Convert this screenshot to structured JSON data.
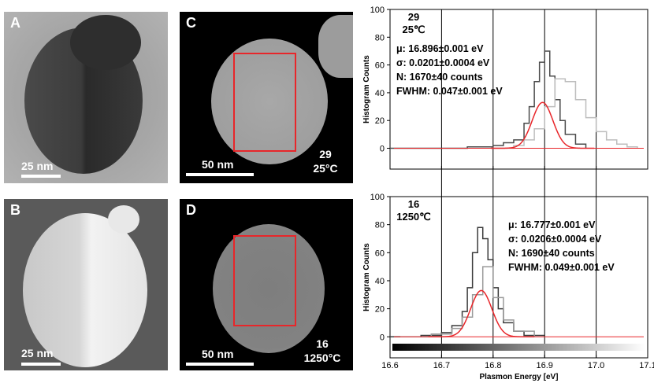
{
  "panels": {
    "A": {
      "letter": "A",
      "scalebar_label": "25 nm"
    },
    "B": {
      "letter": "B",
      "scalebar_label": "25 nm"
    },
    "C": {
      "letter": "C",
      "scalebar_label": "50 nm",
      "id_label": "29",
      "temp_label": "25°C"
    },
    "D": {
      "letter": "D",
      "scalebar_label": "50 nm",
      "id_label": "16",
      "temp_label": "1250°C"
    }
  },
  "colors": {
    "roi_box": "#e8262a",
    "fit_curve": "#e8262a",
    "series_dark": "#444444",
    "series_light": "#bdbdbd"
  },
  "chart_data": [
    {
      "type": "line",
      "id_label": "29",
      "temp_label": "25℃",
      "ylabel": "Histogram Counts",
      "xlabel": "",
      "xlim": [
        16.6,
        17.1
      ],
      "ylim": [
        -15,
        100
      ],
      "yticks": [
        0,
        20,
        40,
        60,
        80,
        100
      ],
      "xticks": [
        16.6,
        16.7,
        16.8,
        16.9,
        17.0,
        17.1
      ],
      "vlines": [
        16.7,
        16.8,
        16.9,
        17.0
      ],
      "stats": [
        "μ: 16.896±0.001 eV",
        "σ: 0.0201±0.0004 eV",
        "N: 1670±40 counts",
        "FWHM: 0.047±0.001 eV"
      ],
      "fit": {
        "mu": 16.896,
        "sigma": 0.0201,
        "peak": 33
      },
      "series": [
        {
          "color": "#4a4a4a",
          "x": [
            16.6,
            16.7,
            16.75,
            16.8,
            16.82,
            16.84,
            16.86,
            16.87,
            16.88,
            16.89,
            16.9,
            16.91,
            16.92,
            16.93,
            16.94,
            16.96,
            16.98
          ],
          "y": [
            0,
            0,
            1,
            2,
            4,
            6,
            18,
            30,
            48,
            62,
            70,
            52,
            35,
            20,
            10,
            3,
            0
          ]
        },
        {
          "color": "#bdbdbd",
          "x": [
            16.8,
            16.84,
            16.86,
            16.88,
            16.9,
            16.92,
            16.94,
            16.96,
            16.98,
            17.0,
            17.02,
            17.04,
            17.06,
            17.08
          ],
          "y": [
            0,
            2,
            6,
            14,
            30,
            50,
            48,
            35,
            22,
            12,
            6,
            3,
            1,
            0
          ]
        }
      ]
    },
    {
      "type": "line",
      "id_label": "16",
      "temp_label": "1250℃",
      "ylabel": "Histogram Counts",
      "xlabel": "Plasmon Energy [eV]",
      "xlim": [
        16.6,
        17.1
      ],
      "ylim": [
        -15,
        100
      ],
      "yticks": [
        0,
        20,
        40,
        60,
        80,
        100
      ],
      "xticks": [
        16.6,
        16.7,
        16.8,
        16.9,
        17.0,
        17.1
      ],
      "xtick_labels": [
        "16.6",
        "16.7",
        "16.8",
        "16.9",
        "17.0",
        "17.1"
      ],
      "vlines": [
        16.7,
        16.8,
        16.9,
        17.0
      ],
      "stats": [
        "μ: 16.777±0.001 eV",
        "σ: 0.0206±0.0004 eV",
        "N: 1690±40 counts",
        "FWHM: 0.049±0.001 eV"
      ],
      "fit": {
        "mu": 16.777,
        "sigma": 0.0206,
        "peak": 33
      },
      "series": [
        {
          "color": "#3a3a3a",
          "x": [
            16.6,
            16.66,
            16.7,
            16.72,
            16.74,
            16.75,
            16.76,
            16.77,
            16.78,
            16.79,
            16.8,
            16.81,
            16.82,
            16.84,
            16.86,
            16.9
          ],
          "y": [
            0,
            1,
            3,
            8,
            18,
            35,
            60,
            78,
            70,
            55,
            35,
            20,
            10,
            4,
            1,
            0
          ]
        },
        {
          "color": "#9a9a9a",
          "x": [
            16.62,
            16.68,
            16.72,
            16.74,
            16.76,
            16.78,
            16.8,
            16.82,
            16.84,
            16.88
          ],
          "y": [
            0,
            2,
            6,
            14,
            30,
            50,
            28,
            12,
            4,
            0
          ]
        }
      ]
    }
  ]
}
